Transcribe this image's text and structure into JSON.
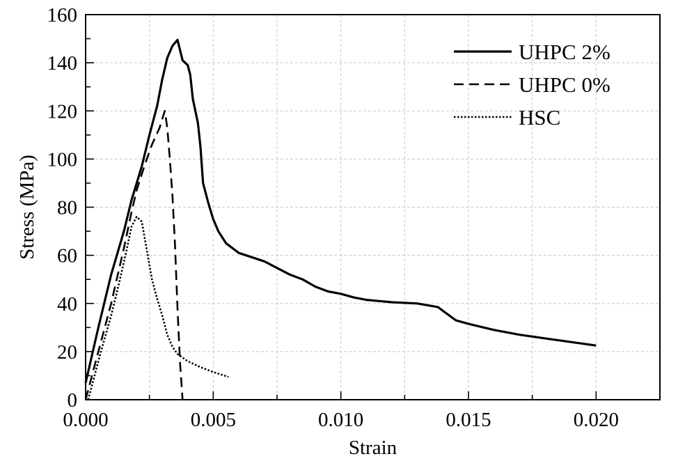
{
  "chart_data": {
    "type": "line",
    "title": "",
    "xlabel": "Strain",
    "ylabel": "Stress (MPa)",
    "xlim": [
      0,
      0.0225
    ],
    "ylim": [
      0,
      160
    ],
    "grid": true,
    "legend_position": "top-right",
    "x_ticks": [
      0.0,
      0.005,
      0.01,
      0.015,
      0.02
    ],
    "x_tick_labels": [
      "0.000",
      "0.005",
      "0.010",
      "0.015",
      "0.020"
    ],
    "y_ticks": [
      0,
      20,
      40,
      60,
      80,
      100,
      120,
      140,
      160
    ],
    "y_tick_labels": [
      "0",
      "20",
      "40",
      "60",
      "80",
      "100",
      "120",
      "140",
      "160"
    ],
    "series": [
      {
        "name": "UHPC 2%",
        "style": "solid",
        "color": "#000000",
        "points": [
          [
            0.0,
            7
          ],
          [
            0.0005,
            30
          ],
          [
            0.001,
            52
          ],
          [
            0.0015,
            70
          ],
          [
            0.0018,
            83
          ],
          [
            0.0022,
            97
          ],
          [
            0.0025,
            110
          ],
          [
            0.0028,
            122
          ],
          [
            0.003,
            133
          ],
          [
            0.0032,
            142
          ],
          [
            0.0034,
            147
          ],
          [
            0.0036,
            149.5
          ],
          [
            0.0038,
            141
          ],
          [
            0.004,
            139
          ],
          [
            0.0041,
            135
          ],
          [
            0.0042,
            125
          ],
          [
            0.0044,
            115
          ],
          [
            0.0045,
            105
          ],
          [
            0.0046,
            90
          ],
          [
            0.0048,
            82
          ],
          [
            0.005,
            75
          ],
          [
            0.0052,
            70
          ],
          [
            0.0055,
            65
          ],
          [
            0.006,
            61
          ],
          [
            0.007,
            57.5
          ],
          [
            0.008,
            52
          ],
          [
            0.0085,
            50
          ],
          [
            0.009,
            47
          ],
          [
            0.0095,
            45
          ],
          [
            0.01,
            44
          ],
          [
            0.0105,
            42.5
          ],
          [
            0.011,
            41.5
          ],
          [
            0.0115,
            41
          ],
          [
            0.012,
            40.5
          ],
          [
            0.013,
            40
          ],
          [
            0.0138,
            38.5
          ],
          [
            0.0145,
            33
          ],
          [
            0.015,
            31.5
          ],
          [
            0.016,
            29
          ],
          [
            0.017,
            27
          ],
          [
            0.018,
            25.5
          ],
          [
            0.019,
            24
          ],
          [
            0.02,
            22.5
          ]
        ]
      },
      {
        "name": "UHPC 0%",
        "style": "dashed",
        "color": "#000000",
        "points": [
          [
            0.0,
            0
          ],
          [
            0.0005,
            20
          ],
          [
            0.001,
            40
          ],
          [
            0.0015,
            63
          ],
          [
            0.0018,
            78
          ],
          [
            0.002,
            87
          ],
          [
            0.0023,
            97
          ],
          [
            0.0026,
            106
          ],
          [
            0.0029,
            113
          ],
          [
            0.0031,
            120
          ],
          [
            0.0032,
            113
          ],
          [
            0.0033,
            100
          ],
          [
            0.0034,
            85
          ],
          [
            0.0035,
            65
          ],
          [
            0.0036,
            38
          ],
          [
            0.0037,
            15
          ],
          [
            0.0038,
            0
          ]
        ]
      },
      {
        "name": "HSC",
        "style": "dotted",
        "color": "#000000",
        "points": [
          [
            0.0001,
            0
          ],
          [
            0.0003,
            8
          ],
          [
            0.0006,
            20
          ],
          [
            0.001,
            35
          ],
          [
            0.0013,
            48
          ],
          [
            0.0016,
            62
          ],
          [
            0.0018,
            72
          ],
          [
            0.002,
            76
          ],
          [
            0.0022,
            74
          ],
          [
            0.0024,
            62
          ],
          [
            0.0026,
            50
          ],
          [
            0.0028,
            42
          ],
          [
            0.003,
            35
          ],
          [
            0.0032,
            27
          ],
          [
            0.0034,
            22
          ],
          [
            0.0036,
            19
          ],
          [
            0.0038,
            17.5
          ],
          [
            0.004,
            16
          ],
          [
            0.0045,
            13.5
          ],
          [
            0.005,
            11.5
          ],
          [
            0.0056,
            9.5
          ]
        ]
      }
    ]
  }
}
